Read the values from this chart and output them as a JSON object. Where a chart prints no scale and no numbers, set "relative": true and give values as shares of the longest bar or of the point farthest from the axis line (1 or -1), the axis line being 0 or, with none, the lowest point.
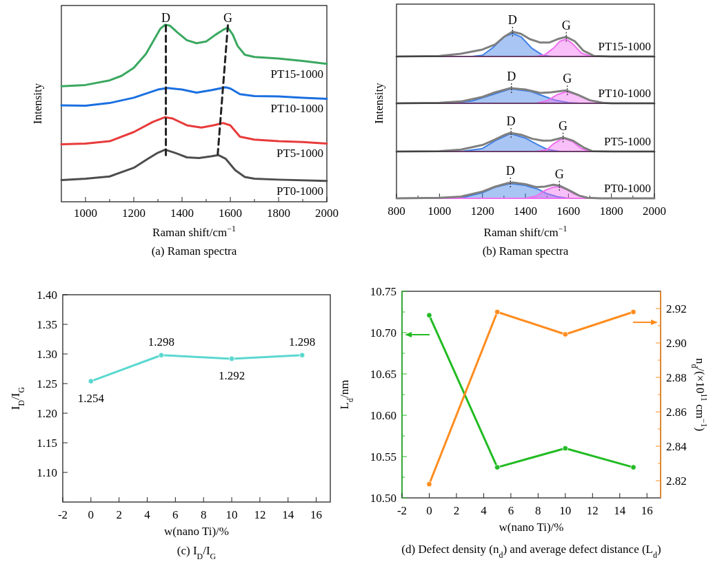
{
  "chart_data": [
    {
      "type": "line",
      "title": "(a) Raman spectra",
      "xlabel": "Raman shift/cm$^{−1}$",
      "ylabel": "Intensity",
      "relative": true,
      "tick_labels": "x",
      "xlim": [
        900,
        2000
      ],
      "xticks": [
        1000,
        {
          "value": 1100,
          "label": null
        },
        1200,
        {
          "value": 1300,
          "label": null
        },
        1400,
        {
          "value": 1500,
          "label": null
        },
        1600,
        {
          "value": 1700,
          "label": null
        },
        1800,
        {
          "value": 1900,
          "label": null
        },
        2000
      ],
      "series": [
        {
          "name": "PT15-1000",
          "color": "#3aa860",
          "x": [
            900,
            1000,
            1100,
            1150,
            1200,
            1250,
            1280,
            1310,
            1330,
            1350,
            1380,
            1420,
            1460,
            1500,
            1540,
            1570,
            1590,
            1610,
            1630,
            1660,
            1700,
            1800,
            1900,
            2000
          ],
          "values": [
            0.653,
            0.66,
            0.686,
            0.712,
            0.757,
            0.835,
            0.906,
            0.978,
            1,
            0.995,
            0.958,
            0.913,
            0.896,
            0.906,
            0.945,
            0.971,
            0.984,
            0.945,
            0.881,
            0.831,
            0.818,
            0.809,
            0.796,
            0.779
          ]
        },
        {
          "name": "PT10-1000",
          "color": "#1a6fe0",
          "x": [
            900,
            1000,
            1100,
            1200,
            1300,
            1340,
            1400,
            1460,
            1520,
            1580,
            1600,
            1640,
            1700,
            1800,
            1900,
            2000
          ],
          "values": [
            0.545,
            0.543,
            0.558,
            0.588,
            0.634,
            0.643,
            0.634,
            0.617,
            0.63,
            0.647,
            0.64,
            0.608,
            0.597,
            0.595,
            0.588,
            0.582
          ]
        },
        {
          "name": "PT5-1000",
          "color": "#e83a3a",
          "x": [
            900,
            1000,
            1100,
            1200,
            1280,
            1330,
            1360,
            1420,
            1480,
            1530,
            1570,
            1600,
            1640,
            1700,
            1800,
            1900,
            2000
          ],
          "values": [
            0.325,
            0.329,
            0.342,
            0.394,
            0.452,
            0.478,
            0.471,
            0.432,
            0.419,
            0.432,
            0.445,
            0.432,
            0.368,
            0.351,
            0.342,
            0.338,
            0.329
          ]
        },
        {
          "name": "PT0-1000",
          "color": "#4d4d4d",
          "x": [
            900,
            1000,
            1100,
            1200,
            1260,
            1300,
            1330,
            1370,
            1420,
            1470,
            1520,
            1550,
            1580,
            1620,
            1660,
            1700,
            1800,
            2000
          ],
          "values": [
            0.123,
            0.13,
            0.143,
            0.192,
            0.244,
            0.277,
            0.294,
            0.277,
            0.251,
            0.247,
            0.257,
            0.264,
            0.244,
            0.179,
            0.14,
            0.13,
            0.125,
            0.118
          ]
        },
        {
          "color": "#222222",
          "line_style": "dashed",
          "x": [
            1333,
            1333
          ],
          "values": [
            0.997,
            0.264
          ]
        },
        {
          "color": "#222222",
          "line_style": "dashed",
          "x": [
            1590,
            1548
          ],
          "values": [
            0.997,
            0.27
          ]
        }
      ],
      "annotations": [
        {
          "text": "D",
          "x": 1333,
          "y": 0.997
        },
        {
          "text": "G",
          "x": 1590,
          "y": 0.997
        }
      ]
    },
    {
      "type": "line",
      "relative": true,
      "tick_labels": false,
      "xlim": [
        800,
        2000
      ],
      "series": [
        {
          "type": "area",
          "color": "#3f7fe6",
          "x": [
            800,
            1150,
            1200,
            1250,
            1300,
            1340,
            1380,
            1430,
            1480,
            1520,
            2000
          ],
          "values": [
            0,
            0,
            0.05,
            0.37,
            0.79,
            0.93,
            0.79,
            0.33,
            0.05,
            0,
            0
          ]
        },
        {
          "type": "area",
          "color": "#f070f0",
          "x": [
            800,
            1450,
            1490,
            1530,
            1560,
            1590,
            1620,
            1660,
            1700,
            1740,
            2000
          ],
          "values": [
            0,
            0,
            0.07,
            0.33,
            0.61,
            0.7,
            0.51,
            0.14,
            0.02,
            0,
            0
          ]
        },
        {
          "name": "PT15-1000",
          "color": "#7f7f7f",
          "x": [
            800,
            1000,
            1100,
            1200,
            1260,
            1300,
            1340,
            1380,
            1420,
            1470,
            1510,
            1550,
            1590,
            1630,
            1670,
            1720,
            1800,
            2000
          ],
          "values": [
            0,
            0.02,
            0.11,
            0.28,
            0.49,
            0.79,
            1,
            0.91,
            0.7,
            0.56,
            0.56,
            0.7,
            0.79,
            0.61,
            0.23,
            0.02,
            0,
            0
          ]
        }
      ],
      "annotations": [
        {
          "text": "D",
          "x": 1340,
          "y": 1
        },
        {
          "text": "G",
          "x": 1590,
          "y": 0.79
        }
      ]
    },
    {
      "type": "line",
      "relative": true,
      "tick_labels": false,
      "xlim": [
        800,
        2000
      ],
      "ylabel": "Intensity",
      "series": [
        {
          "type": "area",
          "color": "#3f7fe6",
          "x": [
            800,
            1050,
            1150,
            1230,
            1330,
            1420,
            1480,
            1540,
            1600,
            1650,
            2000
          ],
          "values": [
            0,
            0.02,
            0.15,
            0.5,
            0.95,
            0.8,
            0.5,
            0.2,
            0.05,
            0,
            0
          ]
        },
        {
          "type": "area",
          "color": "#f070f0",
          "x": [
            800,
            1450,
            1500,
            1550,
            1590,
            1640,
            1700,
            1760,
            1800,
            2000
          ],
          "values": [
            0,
            0,
            0.17,
            0.58,
            0.76,
            0.58,
            0.2,
            0.03,
            0,
            0
          ]
        },
        {
          "name": "PT10-1000",
          "color": "#7f7f7f",
          "x": [
            800,
            1000,
            1100,
            1200,
            1260,
            1330,
            1400,
            1470,
            1520,
            1590,
            1640,
            1700,
            1760,
            1800,
            2000
          ],
          "values": [
            0,
            0.03,
            0.12,
            0.42,
            0.73,
            1,
            0.91,
            0.68,
            0.73,
            0.85,
            0.58,
            0.2,
            0.03,
            0,
            0
          ]
        }
      ],
      "annotations": [
        {
          "text": "D",
          "x": 1335,
          "y": 1
        },
        {
          "text": "G",
          "x": 1595,
          "y": 0.85
        }
      ]
    },
    {
      "type": "line",
      "relative": true,
      "tick_labels": false,
      "xlim": [
        800,
        2000
      ],
      "series": [
        {
          "type": "area",
          "color": "#3f7fe6",
          "x": [
            800,
            1100,
            1200,
            1260,
            1330,
            1400,
            1460,
            1500,
            1560,
            2000
          ],
          "values": [
            0,
            0,
            0.16,
            0.59,
            0.96,
            0.72,
            0.35,
            0.12,
            0,
            0
          ]
        },
        {
          "type": "area",
          "color": "#f070f0",
          "x": [
            800,
            1450,
            1500,
            1530,
            1575,
            1620,
            1660,
            1700,
            1740,
            2000
          ],
          "values": [
            0,
            0,
            0.1,
            0.41,
            0.72,
            0.53,
            0.16,
            0.02,
            0,
            0
          ]
        },
        {
          "name": "PT5-1000",
          "color": "#7f7f7f",
          "x": [
            800,
            1000,
            1100,
            1200,
            1260,
            1300,
            1330,
            1380,
            1430,
            1480,
            1520,
            1575,
            1620,
            1670,
            1710,
            1800,
            2000
          ],
          "values": [
            0,
            0.02,
            0.1,
            0.35,
            0.65,
            0.88,
            1,
            0.9,
            0.69,
            0.58,
            0.59,
            0.75,
            0.59,
            0.22,
            0.02,
            0,
            0
          ]
        }
      ],
      "annotations": [
        {
          "text": "D",
          "x": 1333,
          "y": 1
        },
        {
          "text": "G",
          "x": 1575,
          "y": 0.75
        }
      ]
    },
    {
      "type": "line",
      "relative": true,
      "tick_labels": "x",
      "xlim": [
        800,
        2000
      ],
      "title": "(b) Raman spectra",
      "xlabel": "Raman shift/cm$^{−1}$",
      "xticks": [
        800,
        {
          "value": 900,
          "label": null
        },
        1000,
        {
          "value": 1100,
          "label": null
        },
        1200,
        {
          "value": 1300,
          "label": null
        },
        1400,
        {
          "value": 1500,
          "label": null
        },
        1600,
        {
          "value": 1700,
          "label": null
        },
        1800,
        {
          "value": 1900,
          "label": null
        },
        2000
      ],
      "series": [
        {
          "type": "area",
          "color": "#3f7fe6",
          "x": [
            800,
            1100,
            1200,
            1260,
            1330,
            1400,
            1460,
            1500,
            1550,
            1600,
            2000
          ],
          "values": [
            0,
            0.02,
            0.36,
            0.71,
            0.93,
            0.81,
            0.57,
            0.29,
            0.1,
            0,
            0
          ]
        },
        {
          "type": "area",
          "color": "#f070f0",
          "x": [
            800,
            1400,
            1450,
            1490,
            1530,
            1555,
            1590,
            1630,
            1680,
            1720,
            2000
          ],
          "values": [
            0,
            0,
            0.14,
            0.5,
            0.71,
            0.74,
            0.57,
            0.26,
            0.06,
            0,
            0
          ]
        },
        {
          "name": "PT0-1000",
          "color": "#7f7f7f",
          "x": [
            800,
            1000,
            1100,
            1200,
            1260,
            1320,
            1340,
            1400,
            1450,
            1490,
            1530,
            1560,
            1610,
            1650,
            1690,
            1750,
            2000
          ],
          "values": [
            0,
            0.03,
            0.11,
            0.43,
            0.74,
            0.97,
            1,
            0.89,
            0.71,
            0.74,
            0.86,
            0.79,
            0.46,
            0.17,
            0.03,
            0,
            0
          ]
        }
      ],
      "annotations": [
        {
          "text": "D",
          "x": 1330,
          "y": 1
        },
        {
          "text": "G",
          "x": 1558,
          "y": 0.79
        }
      ]
    },
    {
      "type": "line",
      "title": "(c) I$_{D}$/I$_{G}$",
      "xlabel": "w(nano Ti)/%",
      "ylabel": "I$_{D}$/I$_{G}$",
      "x": [
        0,
        5,
        10,
        15
      ],
      "values": [
        1.254,
        1.298,
        1.292,
        1.298
      ],
      "color": "#5ad8d0",
      "marker": "circle",
      "data_labels": true,
      "xlim": [
        -2,
        17
      ],
      "xticks": [
        -2,
        0,
        2,
        4,
        6,
        8,
        10,
        12,
        14,
        16
      ],
      "ylim": [
        1.05,
        1.4
      ],
      "yticks": [
        {
          "value": 1.1,
          "label": "1.10"
        },
        1.15,
        {
          "value": 1.2,
          "label": "1.20"
        },
        1.25,
        {
          "value": 1.3,
          "label": "1.30"
        },
        1.35,
        {
          "value": 1.4,
          "label": "1.40"
        }
      ]
    },
    {
      "type": "line",
      "title": "(d) Defect density (n$_{d}$) and average defect distance (L$_{d}$)",
      "xlabel": "w(nano Ti)/%",
      "ylabel": "L$_{d}$/nm",
      "y2label": "n$_{d}$/(×10$^{11}$ cm$^{−1}$)",
      "x": [
        0,
        5,
        10,
        15
      ],
      "marker": "circle",
      "xlim": [
        -2,
        17
      ],
      "xticks": [
        -2,
        0,
        2,
        4,
        6,
        8,
        10,
        12,
        14,
        16
      ],
      "ylim": [
        10.5,
        10.75
      ],
      "yticks": [
        {
          "value": 10.5,
          "label": "10.50"
        },
        {
          "value": 10.525,
          "label": null
        },
        10.55,
        {
          "value": 10.575,
          "label": null
        },
        {
          "value": 10.6,
          "label": "10.60"
        },
        {
          "value": 10.625,
          "label": null
        },
        10.65,
        {
          "value": 10.675,
          "label": null
        },
        {
          "value": 10.7,
          "label": "10.70"
        },
        {
          "value": 10.725,
          "label": null
        },
        10.75
      ],
      "y2lim": [
        2.81,
        2.93
      ],
      "y2ticks": [
        2.82,
        {
          "value": 2.83,
          "label": null
        },
        2.84,
        {
          "value": 2.85,
          "label": null
        },
        2.86,
        {
          "value": 2.87,
          "label": null
        },
        2.88,
        {
          "value": 2.89,
          "label": null
        },
        {
          "value": 2.9,
          "label": "2.90"
        },
        {
          "value": 2.91,
          "label": null
        },
        2.92
      ],
      "series": [
        {
          "color": "#22bb22",
          "values": [
            10.721,
            10.537,
            10.56,
            10.537
          ]
        },
        {
          "color": "#ff8c1e",
          "axis": "y2",
          "values": [
            2.818,
            2.918,
            2.905,
            2.918
          ]
        }
      ]
    }
  ]
}
